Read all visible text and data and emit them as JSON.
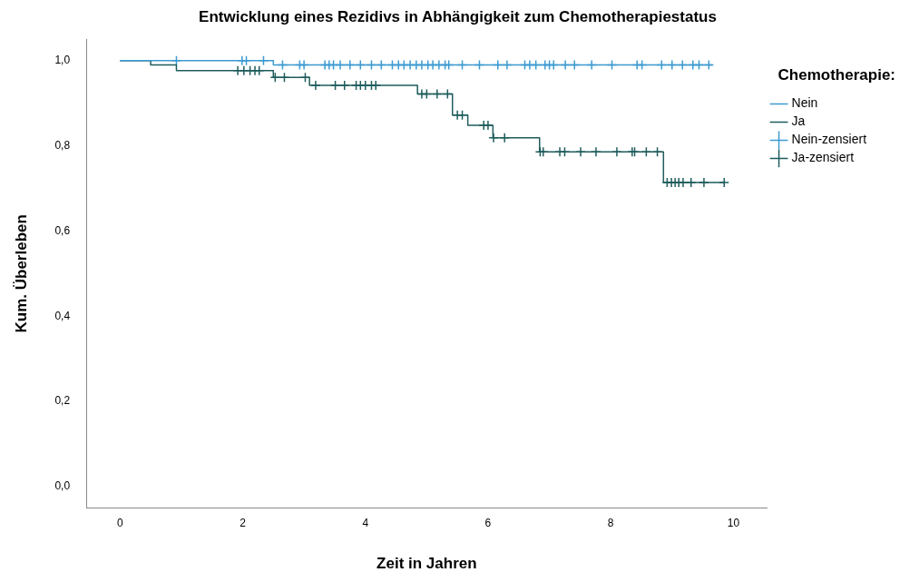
{
  "chart_data": {
    "type": "step",
    "title": "Entwicklung eines Rezidivs in Abhängigkeit zum Chemotherapiestatus",
    "xlabel": "Zeit in Jahren",
    "ylabel": "Kum. Überleben",
    "legend_title": "Chemotherapie:",
    "legend": "top right",
    "grid": false,
    "line_style": "solid",
    "xlim": [
      -0.55,
      10.55
    ],
    "xticks": [
      0,
      2,
      4,
      6,
      8,
      10
    ],
    "ylim": [
      -0.05,
      1.05
    ],
    "yticks": [
      {
        "value": 0,
        "label": "0,0"
      },
      {
        "value": 0.2,
        "label": "0,2"
      },
      {
        "value": 0.4,
        "label": "0,4"
      },
      {
        "value": 0.6,
        "label": "0,6"
      },
      {
        "value": 0.8,
        "label": "0,8"
      },
      {
        "value": 1,
        "label": "1,0"
      }
    ],
    "series": [
      {
        "name": "Nein",
        "color": "#3d9ad1",
        "x": [
          0,
          2.5,
          9.66
        ],
        "values": [
          1,
          0.99,
          0.99
        ]
      },
      {
        "name": "Ja",
        "color": "#1f5c5c",
        "x": [
          0,
          0.5,
          0.92,
          2.5,
          3.09,
          4.85,
          5.42,
          5.67,
          6.08,
          6.84,
          8.86,
          9.85
        ],
        "values": [
          1,
          0.99,
          0.977,
          0.961,
          0.942,
          0.922,
          0.872,
          0.848,
          0.819,
          0.786,
          0.714,
          0.714
        ]
      },
      {
        "name": "Nein-zensiert",
        "type": "scatter",
        "marker": "cross",
        "color": "#3d9ad1",
        "x": [
          0.92,
          1.99,
          2.06,
          2.34,
          2.65,
          2.93,
          3.0,
          3.34,
          3.41,
          3.48,
          3.59,
          3.75,
          3.92,
          4.1,
          4.26,
          4.44,
          4.54,
          4.63,
          4.73,
          4.83,
          4.92,
          5.02,
          5.1,
          5.2,
          5.3,
          5.36,
          5.58,
          5.86,
          6.16,
          6.31,
          6.6,
          6.68,
          6.78,
          6.93,
          7.0,
          7.07,
          7.26,
          7.41,
          7.69,
          8.02,
          8.43,
          8.51,
          8.83,
          9.0,
          9.17,
          9.34,
          9.44,
          9.6
        ],
        "values": [
          1,
          1,
          1,
          1,
          0.99,
          0.99,
          0.99,
          0.99,
          0.99,
          0.99,
          0.99,
          0.99,
          0.99,
          0.99,
          0.99,
          0.99,
          0.99,
          0.99,
          0.99,
          0.99,
          0.99,
          0.99,
          0.99,
          0.99,
          0.99,
          0.99,
          0.99,
          0.99,
          0.99,
          0.99,
          0.99,
          0.99,
          0.99,
          0.99,
          0.99,
          0.99,
          0.99,
          0.99,
          0.99,
          0.99,
          0.99,
          0.99,
          0.99,
          0.99,
          0.99,
          0.99,
          0.99,
          0.99
        ]
      },
      {
        "name": "Ja-zensiert",
        "type": "scatter",
        "marker": "cross",
        "color": "#1f5c5c",
        "x": [
          1.92,
          2.02,
          2.12,
          2.2,
          2.27,
          2.53,
          2.68,
          3.02,
          3.19,
          3.51,
          3.66,
          3.85,
          3.92,
          4.0,
          4.1,
          4.17,
          4.92,
          5.0,
          5.17,
          5.34,
          5.5,
          5.58,
          5.93,
          6.0,
          6.09,
          6.27,
          6.85,
          6.9,
          7.17,
          7.25,
          7.51,
          7.76,
          8.1,
          8.35,
          8.39,
          8.58,
          8.76,
          8.92,
          8.99,
          9.05,
          9.11,
          9.18,
          9.31,
          9.52,
          9.85
        ],
        "values": [
          0.977,
          0.977,
          0.977,
          0.977,
          0.977,
          0.961,
          0.961,
          0.961,
          0.942,
          0.942,
          0.942,
          0.942,
          0.942,
          0.942,
          0.942,
          0.942,
          0.922,
          0.922,
          0.922,
          0.922,
          0.872,
          0.872,
          0.848,
          0.848,
          0.819,
          0.819,
          0.786,
          0.786,
          0.786,
          0.786,
          0.786,
          0.786,
          0.786,
          0.786,
          0.786,
          0.786,
          0.786,
          0.714,
          0.714,
          0.714,
          0.714,
          0.714,
          0.714,
          0.714,
          0.714
        ]
      }
    ]
  }
}
